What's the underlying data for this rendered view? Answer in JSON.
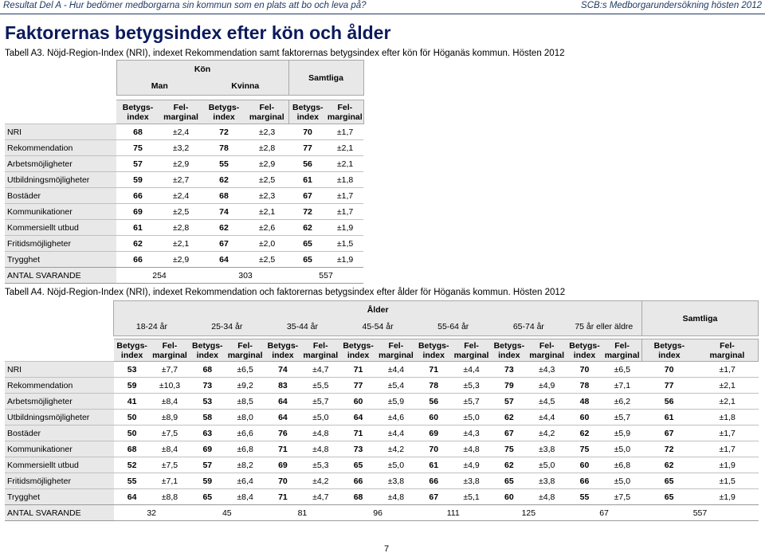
{
  "header": {
    "left": "Resultat Del A - Hur bedömer medborgarna sin kommun som en plats att bo och leva på?",
    "right": "SCB:s Medborgarundersökning hösten 2012"
  },
  "title": "Faktorernas betygsindex efter kön och ålder",
  "table_a3": {
    "caption": "Tabell A3. Nöjd-Region-Index (NRI), indexet Rekommendation samt faktorernas betygsindex efter kön för Höganäs kommun. Hösten 2012",
    "group_label": "Kön",
    "groups": [
      "Man",
      "Kvinna"
    ],
    "total_label": "Samtliga",
    "col_labels": {
      "index_l1": "Betygs-",
      "index_l2": "index",
      "margin_l1": "Fel-",
      "margin_l2": "marginal"
    },
    "rows": [
      {
        "label": "NRI",
        "v": [
          "68",
          "±2,4",
          "72",
          "±2,3",
          "70",
          "±1,7"
        ]
      },
      {
        "label": "Rekommendation",
        "v": [
          "75",
          "±3,2",
          "78",
          "±2,8",
          "77",
          "±2,1"
        ]
      },
      {
        "label": "Arbetsmöjligheter",
        "v": [
          "57",
          "±2,9",
          "55",
          "±2,9",
          "56",
          "±2,1"
        ]
      },
      {
        "label": "Utbildningsmöjligheter",
        "v": [
          "59",
          "±2,7",
          "62",
          "±2,5",
          "61",
          "±1,8"
        ]
      },
      {
        "label": "Bostäder",
        "v": [
          "66",
          "±2,4",
          "68",
          "±2,3",
          "67",
          "±1,7"
        ]
      },
      {
        "label": "Kommunikationer",
        "v": [
          "69",
          "±2,5",
          "74",
          "±2,1",
          "72",
          "±1,7"
        ]
      },
      {
        "label": "Kommersiellt utbud",
        "v": [
          "61",
          "±2,8",
          "62",
          "±2,6",
          "62",
          "±1,9"
        ]
      },
      {
        "label": "Fritidsmöjligheter",
        "v": [
          "62",
          "±2,1",
          "67",
          "±2,0",
          "65",
          "±1,5"
        ]
      },
      {
        "label": "Trygghet",
        "v": [
          "66",
          "±2,9",
          "64",
          "±2,5",
          "65",
          "±1,9"
        ]
      }
    ],
    "respondents": {
      "label": "ANTAL SVARANDE",
      "v": [
        "254",
        "303",
        "557"
      ]
    }
  },
  "table_a4": {
    "caption": "Tabell A4. Nöjd-Region-Index (NRI), indexet Rekommendation och faktorernas betygsindex efter ålder för Höganäs kommun. Hösten 2012",
    "group_label": "Ålder",
    "groups": [
      "18-24 år",
      "25-34 år",
      "35-44 år",
      "45-54 år",
      "55-64 år",
      "65-74 år",
      "75 år eller äldre"
    ],
    "total_label": "Samtliga",
    "col_labels": {
      "index_l1": "Betygs-",
      "index_l2": "index",
      "margin_l1": "Fel-",
      "margin_l2": "marginal"
    },
    "rows": [
      {
        "label": "NRI",
        "v": [
          "53",
          "±7,7",
          "68",
          "±6,5",
          "74",
          "±4,7",
          "71",
          "±4,4",
          "71",
          "±4,4",
          "73",
          "±4,3",
          "70",
          "±6,5",
          "70",
          "±1,7"
        ]
      },
      {
        "label": "Rekommendation",
        "v": [
          "59",
          "±10,3",
          "73",
          "±9,2",
          "83",
          "±5,5",
          "77",
          "±5,4",
          "78",
          "±5,3",
          "79",
          "±4,9",
          "78",
          "±7,1",
          "77",
          "±2,1"
        ]
      },
      {
        "label": "Arbetsmöjligheter",
        "v": [
          "41",
          "±8,4",
          "53",
          "±8,5",
          "64",
          "±5,7",
          "60",
          "±5,9",
          "56",
          "±5,7",
          "57",
          "±4,5",
          "48",
          "±6,2",
          "56",
          "±2,1"
        ]
      },
      {
        "label": "Utbildningsmöjligheter",
        "v": [
          "50",
          "±8,9",
          "58",
          "±8,0",
          "64",
          "±5,0",
          "64",
          "±4,6",
          "60",
          "±5,0",
          "62",
          "±4,4",
          "60",
          "±5,7",
          "61",
          "±1,8"
        ]
      },
      {
        "label": "Bostäder",
        "v": [
          "50",
          "±7,5",
          "63",
          "±6,6",
          "76",
          "±4,8",
          "71",
          "±4,4",
          "69",
          "±4,3",
          "67",
          "±4,2",
          "62",
          "±5,9",
          "67",
          "±1,7"
        ]
      },
      {
        "label": "Kommunikationer",
        "v": [
          "68",
          "±8,4",
          "69",
          "±6,8",
          "71",
          "±4,8",
          "73",
          "±4,2",
          "70",
          "±4,8",
          "75",
          "±3,8",
          "75",
          "±5,0",
          "72",
          "±1,7"
        ]
      },
      {
        "label": "Kommersiellt utbud",
        "v": [
          "52",
          "±7,5",
          "57",
          "±8,2",
          "69",
          "±5,3",
          "65",
          "±5,0",
          "61",
          "±4,9",
          "62",
          "±5,0",
          "60",
          "±6,8",
          "62",
          "±1,9"
        ]
      },
      {
        "label": "Fritidsmöjligheter",
        "v": [
          "55",
          "±7,1",
          "59",
          "±6,4",
          "70",
          "±4,2",
          "66",
          "±3,8",
          "66",
          "±3,8",
          "65",
          "±3,8",
          "66",
          "±5,0",
          "65",
          "±1,5"
        ]
      },
      {
        "label": "Trygghet",
        "v": [
          "64",
          "±8,8",
          "65",
          "±8,4",
          "71",
          "±4,7",
          "68",
          "±4,8",
          "67",
          "±5,1",
          "60",
          "±4,8",
          "55",
          "±7,5",
          "65",
          "±1,9"
        ]
      }
    ],
    "respondents": {
      "label": "ANTAL SVARANDE",
      "v": [
        "32",
        "45",
        "81",
        "96",
        "111",
        "125",
        "67",
        "557"
      ]
    }
  },
  "page_number": "7"
}
